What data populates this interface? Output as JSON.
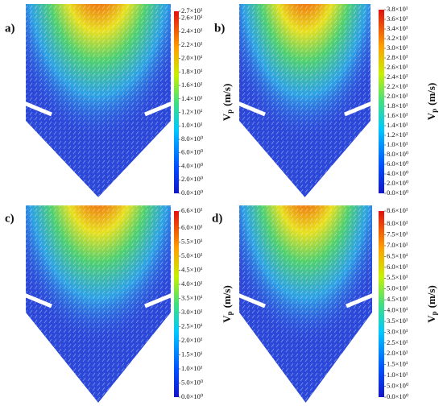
{
  "panels": [
    {
      "label": "a)",
      "colorbar": {
        "symbol": "V",
        "subscript": "p",
        "unit": "(m/s)",
        "range": [
          0,
          27
        ],
        "ticks": [
          {
            "value": 0,
            "label": "0.0×10⁰"
          },
          {
            "value": 2,
            "label": "2.0×10⁰"
          },
          {
            "value": 4,
            "label": "4.0×10⁰"
          },
          {
            "value": 6,
            "label": "6.0×10⁰"
          },
          {
            "value": 8,
            "label": "8.0×10⁰"
          },
          {
            "value": 10,
            "label": "1.0×10¹"
          },
          {
            "value": 12,
            "label": "1.2×10¹"
          },
          {
            "value": 14,
            "label": "1.4×10¹"
          },
          {
            "value": 16,
            "label": "1.6×10¹"
          },
          {
            "value": 18,
            "label": "1.8×10¹"
          },
          {
            "value": 20,
            "label": "2.0×10¹"
          },
          {
            "value": 22,
            "label": "2.2×10¹"
          },
          {
            "value": 24,
            "label": "2.4×10¹"
          },
          {
            "value": 26,
            "label": "2.6×10¹"
          },
          {
            "value": 27,
            "label": "2.7×10¹"
          }
        ]
      }
    },
    {
      "label": "b)",
      "colorbar": {
        "symbol": "V",
        "subscript": "p",
        "unit": "(m/s)",
        "range": [
          0,
          38
        ],
        "ticks": [
          {
            "value": 0,
            "label": "0.0×10⁰"
          },
          {
            "value": 2,
            "label": "2.0×10⁰"
          },
          {
            "value": 4,
            "label": "4.0×10⁰"
          },
          {
            "value": 6,
            "label": "6.0×10⁰"
          },
          {
            "value": 8,
            "label": "8.0×10⁰"
          },
          {
            "value": 10,
            "label": "1.0×10¹"
          },
          {
            "value": 12,
            "label": "1.2×10¹"
          },
          {
            "value": 14,
            "label": "1.4×10¹"
          },
          {
            "value": 16,
            "label": "1.6×10¹"
          },
          {
            "value": 18,
            "label": "1.8×10¹"
          },
          {
            "value": 20,
            "label": "2.0×10¹"
          },
          {
            "value": 22,
            "label": "2.2×10¹"
          },
          {
            "value": 24,
            "label": "2.4×10¹"
          },
          {
            "value": 26,
            "label": "2.6×10¹"
          },
          {
            "value": 28,
            "label": "2.8×10¹"
          },
          {
            "value": 30,
            "label": "3.0×10¹"
          },
          {
            "value": 32,
            "label": "3.2×10¹"
          },
          {
            "value": 34,
            "label": "3.4×10¹"
          },
          {
            "value": 36,
            "label": "3.6×10¹"
          },
          {
            "value": 38,
            "label": "3.8×10¹"
          }
        ]
      }
    },
    {
      "label": "c)",
      "colorbar": {
        "symbol": "V",
        "subscript": "p",
        "unit": "(m/s)",
        "range": [
          0,
          66
        ],
        "ticks": [
          {
            "value": 0,
            "label": "0.0×10⁰"
          },
          {
            "value": 5,
            "label": "5.0×10⁰"
          },
          {
            "value": 10,
            "label": "1.0×10¹"
          },
          {
            "value": 15,
            "label": "1.5×10¹"
          },
          {
            "value": 20,
            "label": "2.0×10¹"
          },
          {
            "value": 25,
            "label": "2.5×10¹"
          },
          {
            "value": 30,
            "label": "3.0×10¹"
          },
          {
            "value": 35,
            "label": "3.5×10¹"
          },
          {
            "value": 40,
            "label": "4.0×10¹"
          },
          {
            "value": 45,
            "label": "4.5×10¹"
          },
          {
            "value": 50,
            "label": "5.0×10¹"
          },
          {
            "value": 55,
            "label": "5.5×10¹"
          },
          {
            "value": 60,
            "label": "6.0×10¹"
          },
          {
            "value": 66,
            "label": "6.6×10¹"
          }
        ]
      }
    },
    {
      "label": "d)",
      "colorbar": {
        "symbol": "V",
        "subscript": "p",
        "unit": "(m/s)",
        "range": [
          0,
          86
        ],
        "ticks": [
          {
            "value": 0,
            "label": "0.0×10⁰"
          },
          {
            "value": 5,
            "label": "5.0×10⁰"
          },
          {
            "value": 10,
            "label": "1.0×10¹"
          },
          {
            "value": 15,
            "label": "1.5×10¹"
          },
          {
            "value": 20,
            "label": "2.0×10¹"
          },
          {
            "value": 25,
            "label": "2.5×10¹"
          },
          {
            "value": 30,
            "label": "3.0×10¹"
          },
          {
            "value": 35,
            "label": "3.5×10¹"
          },
          {
            "value": 40,
            "label": "4.0×10¹"
          },
          {
            "value": 45,
            "label": "4.5×10¹"
          },
          {
            "value": 50,
            "label": "5.0×10¹"
          },
          {
            "value": 55,
            "label": "5.5×10¹"
          },
          {
            "value": 60,
            "label": "6.0×10¹"
          },
          {
            "value": 65,
            "label": "6.5×10¹"
          },
          {
            "value": 70,
            "label": "7.0×10¹"
          },
          {
            "value": 75,
            "label": "7.5×10¹"
          },
          {
            "value": 80,
            "label": "8.0×10¹"
          },
          {
            "value": 86,
            "label": "8.6×10¹"
          }
        ]
      }
    }
  ]
}
